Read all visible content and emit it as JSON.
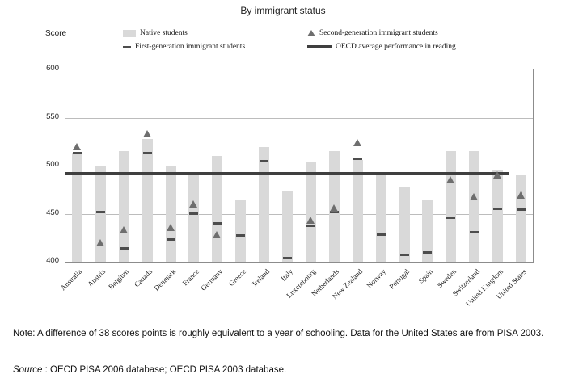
{
  "title": "By immigrant status",
  "legend": {
    "native": "Native students",
    "second_gen": "Second-generation immigrant students",
    "first_gen": "First-generation immigrant students",
    "oecd": "OECD average performance in reading"
  },
  "notes": {
    "note": "Note: A difference of 38 scores points is roughly equivalent to a year of schooling. Data for the United States are from PISA 2003.",
    "source_label": "Source",
    "source_rest": " : OECD PISA 2006 database; OECD PISA 2003 database."
  },
  "colors": {
    "bar": "#d9d9d9",
    "triangle": "#6e6e6e",
    "dash": "#4d4d4d",
    "oecd_line": "#3f3f3f",
    "gridline": "#bcbcbc"
  },
  "chart_data": {
    "type": "bar",
    "title": "By immigrant status",
    "ylabel": "Score",
    "ylim": [
      400,
      600
    ],
    "yticks": [
      400,
      450,
      500,
      550,
      600
    ],
    "grid": true,
    "legend_position": "top",
    "categories": [
      "Australia",
      "Austria",
      "Belgium",
      "Canada",
      "Denmark",
      "France",
      "Germany",
      "Greece",
      "Ireland",
      "Italy",
      "Luxembourg",
      "Netherlands",
      "New Zealand",
      "Norway",
      "Portugal",
      "Spain",
      "Sweden",
      "Switzerland",
      "United Kingdom",
      "United States"
    ],
    "series": [
      {
        "name": "Native students",
        "mark": "bar",
        "values": [
          513,
          500,
          515,
          528,
          500,
          493,
          510,
          464,
          519,
          473,
          503,
          515,
          506,
          490,
          477,
          465,
          515,
          515,
          495,
          490
        ]
      },
      {
        "name": "Second-generation immigrant students",
        "mark": "triangle",
        "values": [
          520,
          420,
          433,
          533,
          436,
          460,
          428,
          null,
          null,
          null,
          443,
          456,
          524,
          null,
          null,
          null,
          485,
          468,
          490,
          469
        ]
      },
      {
        "name": "First-generation immigrant students",
        "mark": "dash",
        "values": [
          513,
          452,
          414,
          513,
          423,
          450,
          440,
          427,
          505,
          404,
          437,
          452,
          507,
          428,
          407,
          410,
          446,
          431,
          455,
          454
        ]
      },
      {
        "name": "OECD average performance in reading",
        "mark": "hline",
        "value": 492,
        "span_end_category": "United Kingdom"
      }
    ]
  }
}
